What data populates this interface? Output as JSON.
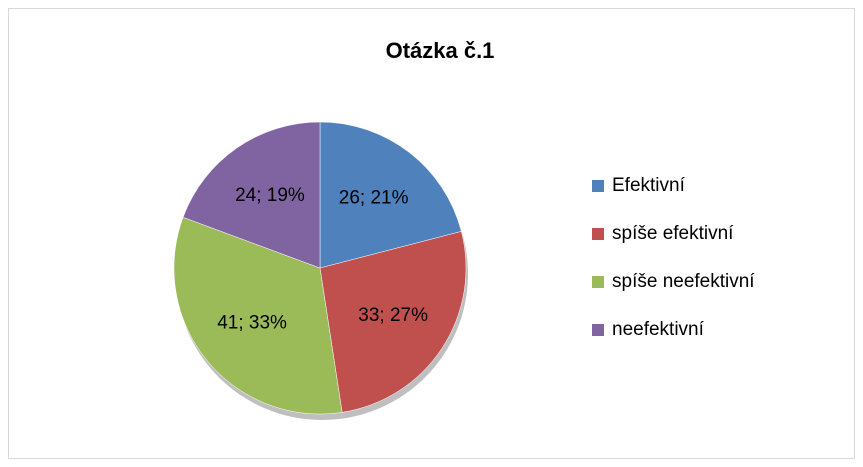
{
  "chart_data": {
    "type": "pie",
    "title": "Otázka č.1",
    "categories": [
      "Efektivní",
      "spíše efektivní",
      "spíše neefektivní",
      "neefektivní"
    ],
    "values": [
      26,
      33,
      41,
      24
    ],
    "value_labels": [
      "26; 21%",
      "33; 27%",
      "41; 33%",
      "24; 19%"
    ],
    "colors": [
      "#4f81bd",
      "#c0504d",
      "#9bbb59",
      "#8064a2"
    ],
    "legend": "right"
  }
}
